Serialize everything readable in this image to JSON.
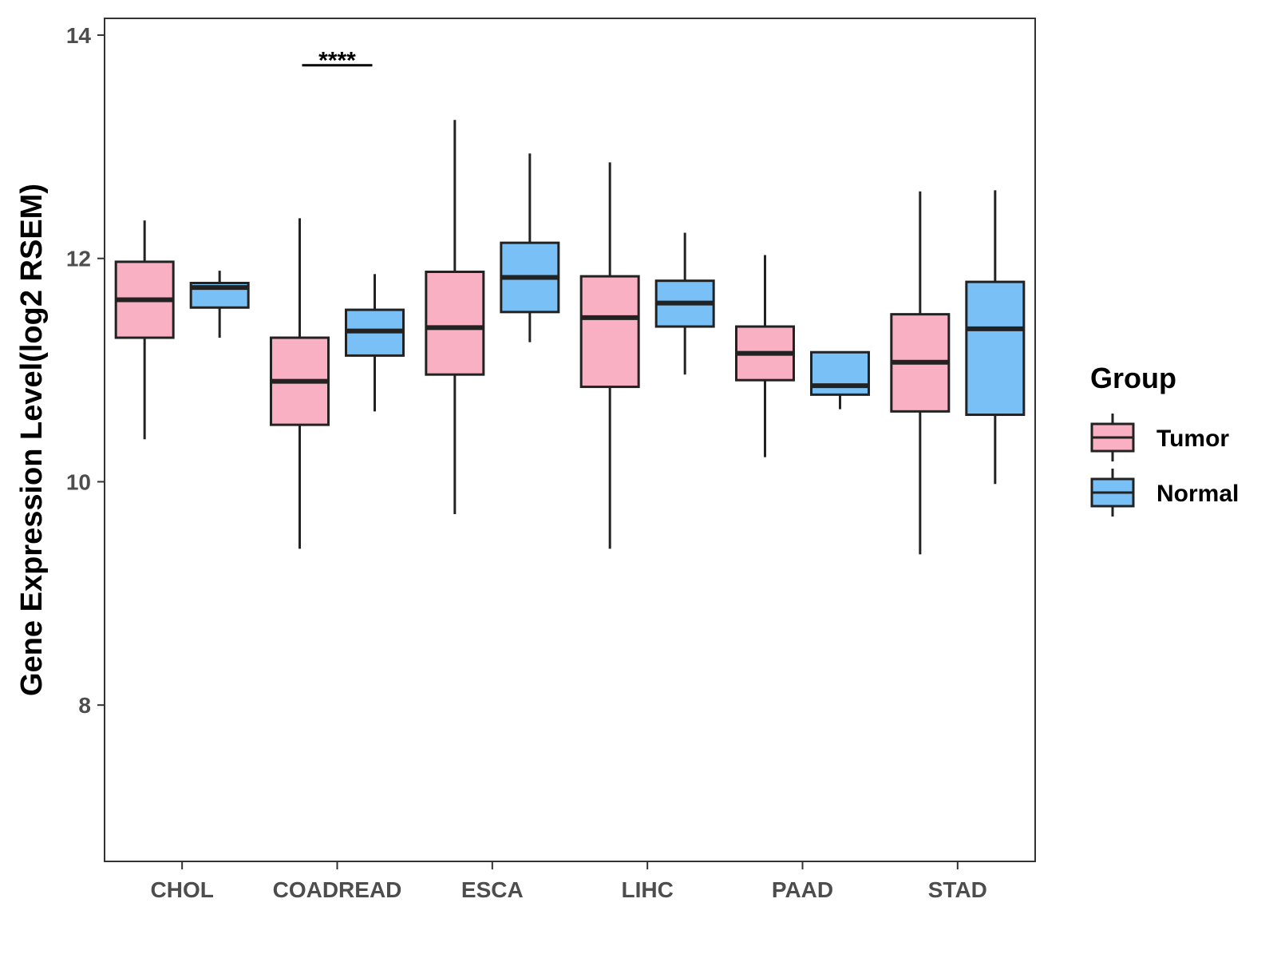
{
  "chart_data": {
    "type": "boxplot",
    "title": "",
    "xlabel": "",
    "ylabel": "Gene Expression Level(log2 RSEM)",
    "ylim": [
      6.6,
      14.15
    ],
    "yticks": [
      8,
      10,
      12,
      14
    ],
    "ytick_labels": [
      "8",
      "10",
      "12",
      "14"
    ],
    "categories": [
      "CHOL",
      "COADREAD",
      "ESCA",
      "LIHC",
      "PAAD",
      "STAD"
    ],
    "legend": {
      "title": "Group",
      "placement": "right",
      "entries": [
        "Tumor",
        "Normal"
      ]
    },
    "colors": {
      "Tumor": "#F9B0C3",
      "Normal": "#79C0F7",
      "stroke": "#222222",
      "axis": "#333333"
    },
    "series": [
      {
        "name": "Tumor",
        "boxes": [
          {
            "min": 10.38,
            "q1": 11.29,
            "median": 11.63,
            "q3": 11.97,
            "max": 12.34
          },
          {
            "min": 9.4,
            "q1": 10.51,
            "median": 10.9,
            "q3": 11.29,
            "max": 12.36
          },
          {
            "min": 9.71,
            "q1": 10.96,
            "median": 11.38,
            "q3": 11.88,
            "max": 13.24
          },
          {
            "min": 9.4,
            "q1": 10.85,
            "median": 11.47,
            "q3": 11.84,
            "max": 12.86
          },
          {
            "min": 10.22,
            "q1": 10.91,
            "median": 11.15,
            "q3": 11.39,
            "max": 12.03
          },
          {
            "min": 9.35,
            "q1": 10.63,
            "median": 11.07,
            "q3": 11.5,
            "max": 12.6
          }
        ]
      },
      {
        "name": "Normal",
        "boxes": [
          {
            "min": 11.29,
            "q1": 11.56,
            "median": 11.74,
            "q3": 11.78,
            "max": 11.89
          },
          {
            "min": 10.63,
            "q1": 11.13,
            "median": 11.35,
            "q3": 11.54,
            "max": 11.86
          },
          {
            "min": 11.25,
            "q1": 11.52,
            "median": 11.83,
            "q3": 12.14,
            "max": 12.94
          },
          {
            "min": 10.96,
            "q1": 11.39,
            "median": 11.6,
            "q3": 11.8,
            "max": 12.23
          },
          {
            "min": 10.65,
            "q1": 10.78,
            "median": 10.86,
            "q3": 11.16,
            "max": 11.16
          },
          {
            "min": 9.98,
            "q1": 10.6,
            "median": 11.37,
            "q3": 11.79,
            "max": 12.61
          }
        ]
      }
    ],
    "annotations": [
      {
        "category": "COADREAD",
        "label": "****",
        "y": 13.73
      }
    ]
  }
}
